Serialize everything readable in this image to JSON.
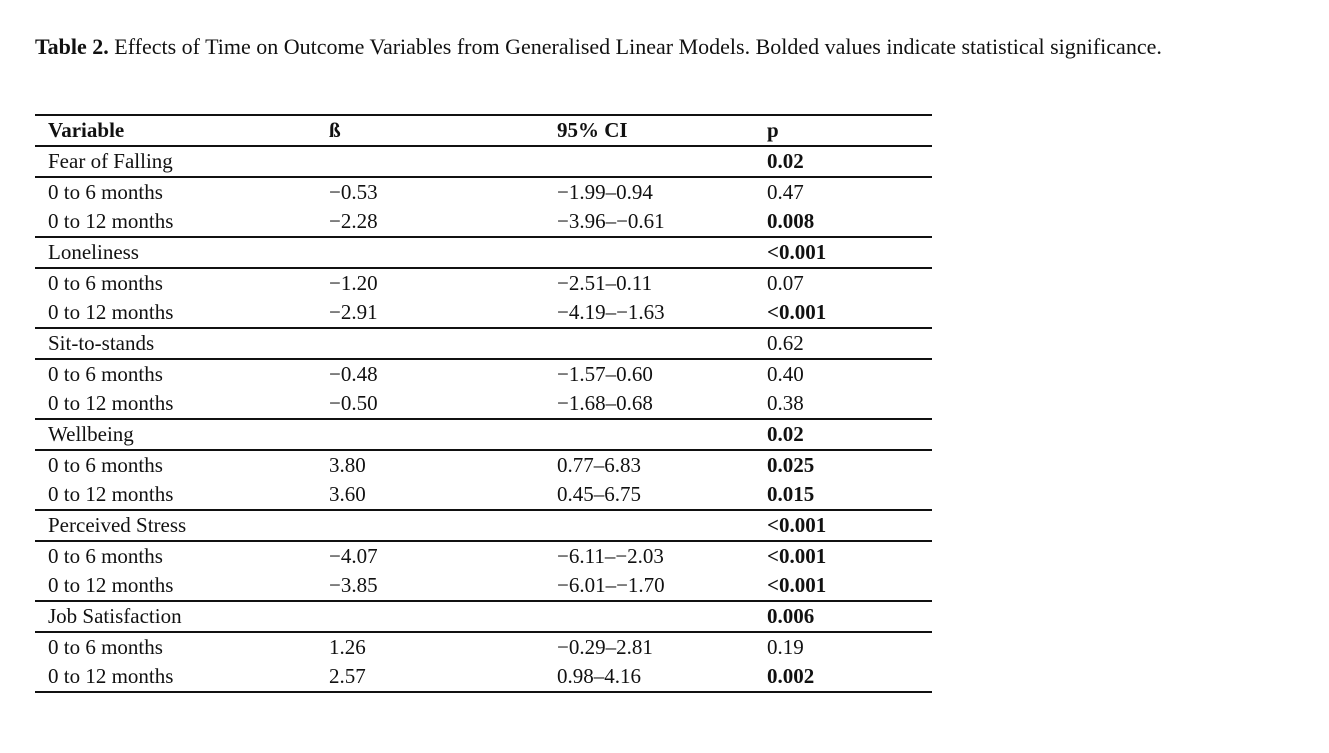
{
  "caption": {
    "label": "Table 2.",
    "text": "Effects of Time on Outcome Variables from Generalised Linear Models. Bolded values indicate statistical significance."
  },
  "table": {
    "header": [
      "Variable",
      "ß",
      "95% CI",
      "p"
    ],
    "groups": [
      {
        "name": "Fear of Falling",
        "p": "0.02",
        "p_bold": true,
        "rows": [
          {
            "label": "0 to 6 months",
            "beta": "−0.53",
            "ci": "−1.99–0.94",
            "p": "0.47",
            "p_bold": false
          },
          {
            "label": "0 to 12 months",
            "beta": "−2.28",
            "ci": "−3.96–−0.61",
            "p": "0.008",
            "p_bold": true
          }
        ]
      },
      {
        "name": "Loneliness",
        "p": "<0.001",
        "p_bold": true,
        "rows": [
          {
            "label": "0 to 6 months",
            "beta": "−1.20",
            "ci": "−2.51–0.11",
            "p": "0.07",
            "p_bold": false
          },
          {
            "label": "0 to 12 months",
            "beta": "−2.91",
            "ci": "−4.19–−1.63",
            "p": "<0.001",
            "p_bold": true
          }
        ]
      },
      {
        "name": "Sit-to-stands",
        "p": "0.62",
        "p_bold": false,
        "rows": [
          {
            "label": "0 to 6 months",
            "beta": "−0.48",
            "ci": "−1.57–0.60",
            "p": "0.40",
            "p_bold": false
          },
          {
            "label": "0 to 12 months",
            "beta": "−0.50",
            "ci": "−1.68–0.68",
            "p": "0.38",
            "p_bold": false
          }
        ]
      },
      {
        "name": "Wellbeing",
        "p": "0.02",
        "p_bold": true,
        "rows": [
          {
            "label": "0 to 6 months",
            "beta": "3.80",
            "ci": "0.77–6.83",
            "p": "0.025",
            "p_bold": true
          },
          {
            "label": "0 to 12 months",
            "beta": "3.60",
            "ci": "0.45–6.75",
            "p": "0.015",
            "p_bold": true
          }
        ]
      },
      {
        "name": "Perceived Stress",
        "p": "<0.001",
        "p_bold": true,
        "rows": [
          {
            "label": "0 to 6 months",
            "beta": "−4.07",
            "ci": "−6.11–−2.03",
            "p": "<0.001",
            "p_bold": true
          },
          {
            "label": "0 to 12 months",
            "beta": "−3.85",
            "ci": "−6.01–−1.70",
            "p": "<0.001",
            "p_bold": true
          }
        ]
      },
      {
        "name": "Job Satisfaction",
        "p": "0.006",
        "p_bold": true,
        "rows": [
          {
            "label": "0 to 6 months",
            "beta": "1.26",
            "ci": "−0.29–2.81",
            "p": "0.19",
            "p_bold": false
          },
          {
            "label": "0 to 12 months",
            "beta": "2.57",
            "ci": "0.98–4.16",
            "p": "0.002",
            "p_bold": true
          }
        ]
      }
    ]
  }
}
